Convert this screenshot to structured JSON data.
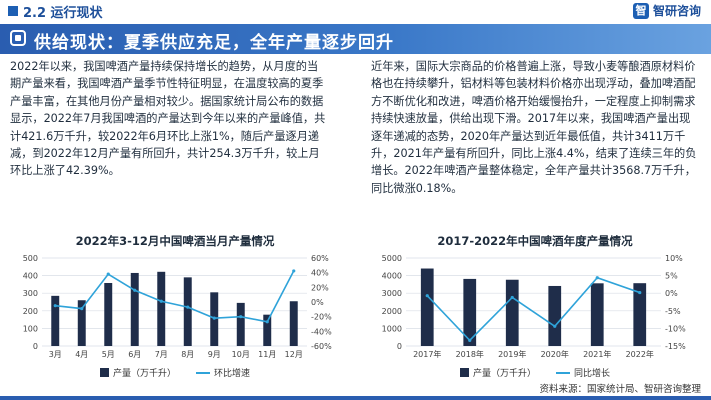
{
  "header": {
    "section": "2.2 运行现状",
    "logo_text": "智研咨询",
    "banner_title": "供给现状：夏季供应充足，全年产量逐步回升"
  },
  "body": {
    "left_text": "2022年以来，我国啤酒产量持续保持增长的趋势，从月度的当期产量来看，我国啤酒产量季节性特征明显，在温度较高的夏季产量丰富，在其他月份产量相对较少。据国家统计局公布的数据显示，2022年7月我国啤酒的产量达到今年以来的产量峰值，共计421.6万千升，较2022年6月环比上涨1%，随后产量逐月递减，到2022年12月产量有所回升，共计254.3万千升，较上月环比上涨了42.39%。",
    "right_text": "近年来，国际大宗商品的价格普遍上涨，导致小麦等酿酒原材料价格也在持续攀升，铝材料等包装材料价格亦出现浮动，叠加啤酒配方不断优化和改进，啤酒价格开始缓慢抬升，一定程度上抑制需求持续快速放量，供给出现下滑。2017年以来，我国啤酒产量出现逐年递减的态势，2020年产量达到近年最低值，共计3411万千升，2021年产量有所回升，同比上涨4.4%，结束了连续三年的负增长。2022年啤酒产量整体稳定，全年产量共计3568.7万千升，同比微涨0.18%。"
  },
  "footer": {
    "source": "资料来源：国家统计局、智研咨询整理"
  },
  "chart_data": [
    {
      "type": "bar",
      "title": "2022年3-12月中国啤酒当月产量情况",
      "categories": [
        "3月",
        "4月",
        "5月",
        "6月",
        "7月",
        "8月",
        "9月",
        "10月",
        "11月",
        "12月"
      ],
      "series": [
        {
          "name": "产量（万千升）",
          "type": "bar",
          "axis": "left",
          "color": "#1f2d4a",
          "values": [
            285,
            260,
            358,
            415,
            421.6,
            390,
            305,
            245,
            178,
            254.3
          ]
        },
        {
          "name": "环比增速",
          "type": "line",
          "axis": "right",
          "color": "#2fa3d9",
          "values": [
            -5,
            -9,
            38,
            16,
            1,
            -7,
            -22,
            -20,
            -27,
            42.39
          ]
        }
      ],
      "ylim_left": [
        0,
        500
      ],
      "yticks_left": [
        0,
        100,
        200,
        300,
        400,
        500
      ],
      "ylim_right": [
        -60,
        60
      ],
      "yticks_right": [
        "-60%",
        "-40%",
        "-20%",
        "0%",
        "20%",
        "40%",
        "60%"
      ],
      "grid": true,
      "legend": "bottom"
    },
    {
      "type": "bar",
      "title": "2017-2022年中国啤酒年度产量情况",
      "categories": [
        "2017年",
        "2018年",
        "2019年",
        "2020年",
        "2021年",
        "2022年"
      ],
      "series": [
        {
          "name": "产量（万千升）",
          "type": "bar",
          "axis": "left",
          "color": "#1f2d4a",
          "values": [
            4402,
            3812,
            3765,
            3411,
            3562,
            3568.7
          ]
        },
        {
          "name": "同比增长",
          "type": "line",
          "axis": "right",
          "color": "#2fa3d9",
          "values": [
            -0.7,
            -13.4,
            -1.2,
            -9.4,
            4.4,
            0.18
          ]
        }
      ],
      "ylim_left": [
        0,
        5000
      ],
      "yticks_left": [
        0,
        1000,
        2000,
        3000,
        4000,
        5000
      ],
      "ylim_right": [
        -15,
        10
      ],
      "yticks_right": [
        "-15%",
        "-10%",
        "-5%",
        "0%",
        "5%",
        "10%"
      ],
      "grid": true,
      "legend": "bottom"
    }
  ]
}
